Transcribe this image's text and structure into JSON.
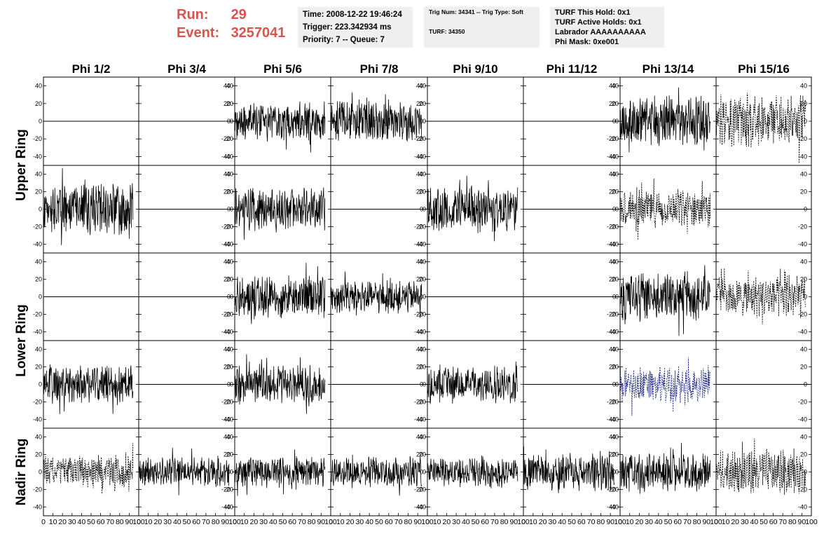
{
  "run_info": {
    "run_label": "Run:",
    "run_value": "29",
    "event_label": "Event:",
    "event_value": "3257041"
  },
  "info_box_1": {
    "time": "Time: 2008-12-22 19:46:24",
    "trigger": "Trigger: 223.342934 ms",
    "priority": "Priority: 7 -- Queue: 7"
  },
  "info_box_2": {
    "trig": "Trig Num: 34341 -- Trig Type: Soft",
    "turf": "TURF: 34350"
  },
  "info_box_3": {
    "hold": "TURF This Hold: 0x1",
    "active": "TURF Active Holds: 0x1",
    "labrador": "Labrador AAAAAAAAAA",
    "phimask": "Phi Mask: 0xe001"
  },
  "chart_data": {
    "type": "line",
    "columns": [
      "Phi 1/2",
      "Phi 3/4",
      "Phi 5/6",
      "Phi 7/8",
      "Phi 9/10",
      "Phi 11/12",
      "Phi 13/14",
      "Phi 15/16"
    ],
    "row_labels": [
      {
        "text": "Upper Ring",
        "rows": [
          0,
          1
        ]
      },
      {
        "text": "Lower Ring",
        "rows": [
          2,
          3
        ]
      },
      {
        "text": "Nadir Ring",
        "rows": [
          4,
          4
        ]
      }
    ],
    "xlim": [
      0,
      100
    ],
    "ylim": [
      -50,
      50
    ],
    "y_ticks": [
      -40,
      -20,
      0,
      20,
      40
    ],
    "x_tick_labels": [
      "0",
      "10",
      "20",
      "30",
      "40",
      "50",
      "60",
      "70",
      "80",
      "90",
      "100"
    ],
    "samples": 260,
    "colors": {
      "solid": "#000000",
      "blue": "#1a237e"
    },
    "panels": [
      [
        {
          "amp": 0
        },
        {
          "amp": 0
        },
        {
          "amp": 18,
          "style": "solid",
          "seed": 3
        },
        {
          "amp": 20,
          "style": "solid",
          "seed": 4
        },
        {
          "amp": 0
        },
        {
          "amp": 0
        },
        {
          "amp": 24,
          "style": "solid",
          "seed": 7
        },
        {
          "amp": 25,
          "style": "dashed",
          "seed": 8
        }
      ],
      [
        {
          "amp": 24,
          "style": "solid",
          "seed": 9
        },
        {
          "amp": 0
        },
        {
          "amp": 20,
          "style": "solid",
          "seed": 11
        },
        {
          "amp": 0
        },
        {
          "amp": 22,
          "style": "solid",
          "seed": 13
        },
        {
          "amp": 0
        },
        {
          "amp": 18,
          "style": "dashed",
          "seed": 15
        },
        {
          "amp": 0
        }
      ],
      [
        {
          "amp": 0
        },
        {
          "amp": 0
        },
        {
          "amp": 20,
          "style": "solid",
          "seed": 19
        },
        {
          "amp": 16,
          "style": "solid",
          "seed": 20
        },
        {
          "amp": 0
        },
        {
          "amp": 0
        },
        {
          "amp": 24,
          "style": "solid",
          "seed": 23
        },
        {
          "amp": 20,
          "style": "dashed",
          "seed": 24
        }
      ],
      [
        {
          "amp": 18,
          "style": "solid",
          "seed": 25
        },
        {
          "amp": 0
        },
        {
          "amp": 18,
          "style": "solid",
          "seed": 27
        },
        {
          "amp": 0
        },
        {
          "amp": 18,
          "style": "solid",
          "seed": 29
        },
        {
          "amp": 0
        },
        {
          "amp": 18,
          "style": "blue",
          "seed": 31
        },
        {
          "amp": 0
        }
      ],
      [
        {
          "amp": 16,
          "style": "dashed",
          "seed": 33
        },
        {
          "amp": 14,
          "style": "solid",
          "seed": 34
        },
        {
          "amp": 14,
          "style": "solid",
          "seed": 35
        },
        {
          "amp": 14,
          "style": "solid",
          "seed": 36
        },
        {
          "amp": 14,
          "style": "solid",
          "seed": 37
        },
        {
          "amp": 18,
          "style": "solid",
          "seed": 38
        },
        {
          "amp": 18,
          "style": "solid",
          "seed": 39
        },
        {
          "amp": 22,
          "style": "dashed",
          "seed": 40
        }
      ]
    ]
  }
}
